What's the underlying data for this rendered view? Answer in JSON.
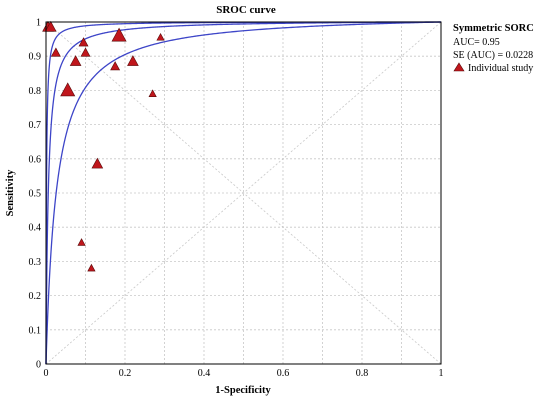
{
  "chart_data": {
    "type": "scatter",
    "title": "SROC curve",
    "xlabel": "1-Specificity",
    "ylabel": "Sensitivity",
    "xlim": [
      0,
      1
    ],
    "ylim": [
      0,
      1
    ],
    "x_ticks": [
      "0",
      "0.2",
      "0.4",
      "0.6",
      "0.8",
      "1"
    ],
    "y_ticks": [
      "0",
      "0.1",
      "0.2",
      "0.3",
      "0.4",
      "0.5",
      "0.6",
      "0.7",
      "0.8",
      "0.9",
      "1"
    ],
    "grid": true,
    "legend_position": "top-right",
    "legend": {
      "title": "Symmetric SORC",
      "auc": "AUC= 0.95",
      "se_auc": "SE (AUC) = 0.0228",
      "marker_label": "Individual study"
    },
    "curves": {
      "sroc_dor": 174,
      "lower_dor": 38,
      "upper_dor": 800
    },
    "studies": [
      {
        "x": 0.005,
        "y": 0.985,
        "size": 4
      },
      {
        "x": 0.012,
        "y": 0.985,
        "size": 4
      },
      {
        "x": 0.025,
        "y": 0.91,
        "size": 3
      },
      {
        "x": 0.055,
        "y": 0.8,
        "size": 6
      },
      {
        "x": 0.075,
        "y": 0.885,
        "size": 4
      },
      {
        "x": 0.095,
        "y": 0.94,
        "size": 3
      },
      {
        "x": 0.1,
        "y": 0.91,
        "size": 3
      },
      {
        "x": 0.13,
        "y": 0.585,
        "size": 4
      },
      {
        "x": 0.175,
        "y": 0.87,
        "size": 3
      },
      {
        "x": 0.185,
        "y": 0.96,
        "size": 6
      },
      {
        "x": 0.22,
        "y": 0.885,
        "size": 4
      },
      {
        "x": 0.27,
        "y": 0.79,
        "size": 2
      },
      {
        "x": 0.29,
        "y": 0.955,
        "size": 2
      },
      {
        "x": 0.09,
        "y": 0.355,
        "size": 2
      },
      {
        "x": 0.115,
        "y": 0.28,
        "size": 2
      }
    ],
    "colors": {
      "curve": "#3d45c8",
      "marker_fill": "#c0161c",
      "marker_stroke": "#5a0a0a",
      "grid": "#c8c8c8",
      "diagonal": "#c8c8c8"
    }
  }
}
